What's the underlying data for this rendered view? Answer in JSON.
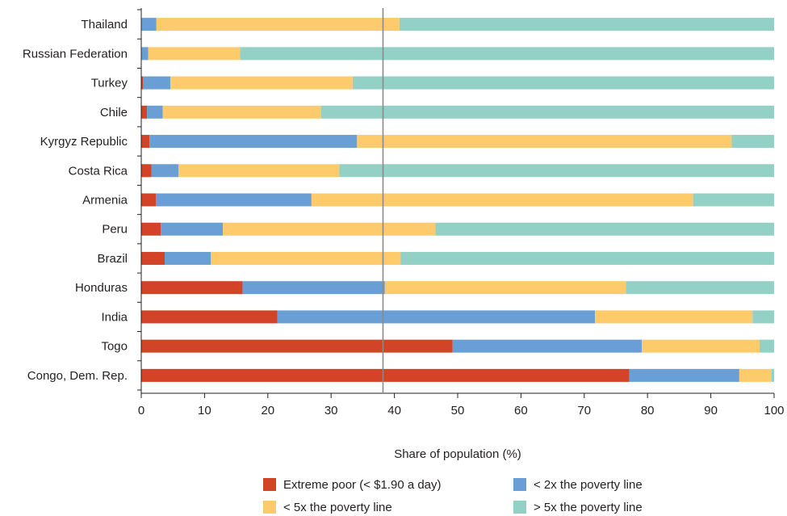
{
  "chart_data": {
    "type": "bar",
    "orientation": "horizontal",
    "stacked": true,
    "categories": [
      "Thailand",
      "Russian Federation",
      "Turkey",
      "Chile",
      "Kyrgyz Republic",
      "Costa Rica",
      "Armenia",
      "Peru",
      "Brazil",
      "Honduras",
      "India",
      "Togo",
      "Congo, Dem. Rep."
    ],
    "series": [
      {
        "name": "Extreme poor (< $1.90 a day)",
        "color": "#d24328",
        "values": [
          0.1,
          0.1,
          0.3,
          0.9,
          1.3,
          1.6,
          2.3,
          3.1,
          3.7,
          16.0,
          21.5,
          49.2,
          77.1
        ]
      },
      {
        "name": "< 2x the poverty line",
        "color": "#6a9fd5",
        "values": [
          2.3,
          1.0,
          4.3,
          2.5,
          32.8,
          4.3,
          24.6,
          9.8,
          7.3,
          22.5,
          50.2,
          29.9,
          17.4
        ]
      },
      {
        "name": "< 5x the poverty line",
        "color": "#fdcb6b",
        "values": [
          38.4,
          14.5,
          28.8,
          25.0,
          59.2,
          25.4,
          60.3,
          33.6,
          30.0,
          38.1,
          24.9,
          18.6,
          5.1
        ]
      },
      {
        "name": "> 5x the poverty line",
        "color": "#93d0c6",
        "values": [
          59.2,
          84.4,
          66.6,
          71.6,
          6.7,
          68.7,
          12.8,
          53.5,
          59.0,
          23.4,
          3.4,
          2.3,
          0.4
        ]
      }
    ],
    "xlabel": "Share of population (%)",
    "xlim": [
      0,
      100
    ],
    "xticks": [
      "0",
      "10",
      "20",
      "30",
      "40",
      "50",
      "60",
      "70",
      "80",
      "90",
      "100"
    ],
    "reference_line_x": 38.2,
    "legend_position": "bottom"
  }
}
